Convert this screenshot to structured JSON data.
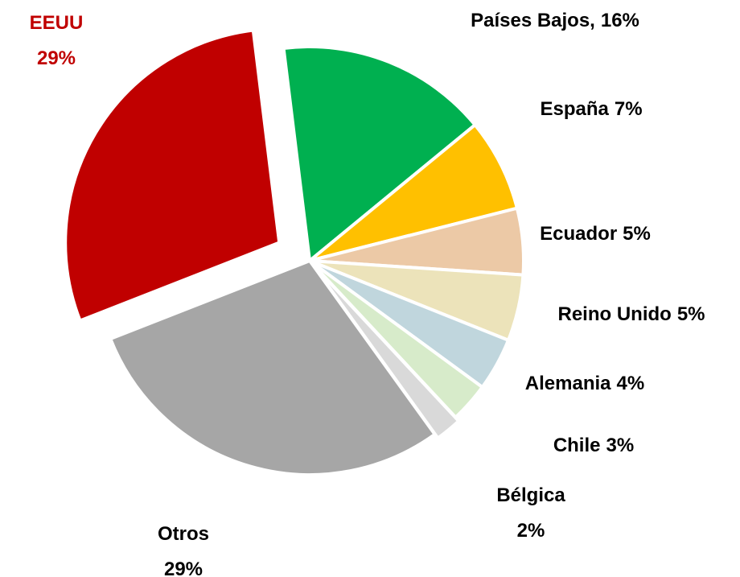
{
  "chart_data": {
    "type": "pie",
    "categories": [
      "Países Bajos,",
      "España",
      "Ecuador",
      "Reino Unido",
      "Alemania",
      "Chile",
      "Bélgica",
      "Otros",
      "EEUU"
    ],
    "values": [
      16,
      7,
      5,
      5,
      4,
      3,
      2,
      29,
      29
    ],
    "value_labels": [
      "16%",
      "7%",
      "5%",
      "5%",
      "4%",
      "3%",
      "2%",
      "29%",
      "29%"
    ],
    "colors": [
      "#00b050",
      "#ffc000",
      "#ecc9a6",
      "#ece3ba",
      "#c0d6dd",
      "#d7ebca",
      "#d9d9d9",
      "#a6a6a6",
      "#c00000"
    ],
    "label_colors": [
      "#000000",
      "#000000",
      "#000000",
      "#000000",
      "#000000",
      "#000000",
      "#000000",
      "#000000",
      "#c00000"
    ]
  }
}
